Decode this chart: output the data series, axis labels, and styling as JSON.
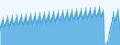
{
  "values": [
    4200,
    3100,
    4800,
    3800,
    5500,
    4200,
    6200,
    5100,
    3900,
    4600,
    3500,
    5200,
    4100,
    5800,
    4500,
    6500,
    5200,
    4000,
    4700,
    3600,
    5300,
    4200,
    5900,
    4700,
    6700,
    5400,
    4200,
    4900,
    3700,
    5400,
    4300,
    6000,
    4800,
    6800,
    5500,
    4300,
    5000,
    3800,
    5500,
    4400,
    6100,
    4900,
    6900,
    5600,
    4400,
    5100,
    3900,
    5600,
    4500,
    6200,
    5000,
    7000,
    5700,
    4500,
    5200,
    4000,
    5700,
    4600,
    6300,
    5100,
    7100,
    5800,
    4600,
    5300,
    4100,
    5800,
    4700,
    6400,
    5200,
    7200,
    5900,
    4700,
    5400,
    4200,
    5900,
    4800,
    6500,
    5300,
    7300,
    6000,
    4800,
    5500,
    4300,
    6000,
    4900,
    6600,
    5400,
    7400,
    6100,
    4900,
    5600,
    4400,
    6100,
    5000,
    6700,
    5500,
    7500,
    6200,
    5000,
    5700,
    4500,
    6200,
    5100,
    6800,
    5600,
    7600,
    6300,
    5100,
    5800,
    4600,
    6300,
    5200,
    6900,
    5700,
    7700,
    6400,
    5200,
    5900,
    4700,
    6400,
    5300,
    7000,
    5800,
    7800,
    6500,
    5300,
    6000,
    4800,
    6500,
    5400,
    7100,
    5900,
    7900,
    6600,
    5400,
    6100,
    4900,
    6600,
    5500,
    7200,
    6000,
    8000,
    6700,
    5500,
    6200,
    5000,
    6700,
    5600,
    7300,
    6100,
    8100,
    6800,
    5600,
    6300,
    5100,
    6800,
    5700,
    7400,
    6200,
    8200,
    6900,
    5700,
    6400,
    5200,
    6900,
    5800,
    7500,
    6300,
    8300,
    7000,
    5800,
    6500,
    5300,
    7000,
    5900,
    7600,
    6400,
    8400,
    7100,
    5900,
    6600,
    5400,
    7100,
    6000,
    7700,
    6500,
    8500,
    7200,
    6000,
    6700,
    5500,
    7200,
    6100,
    7800,
    6600,
    8600,
    7300,
    6100,
    6800,
    5600,
    7300,
    6200,
    7900,
    6700,
    200,
    150,
    100,
    50,
    300,
    600,
    800,
    500,
    1200,
    2000,
    3000,
    2500,
    4000,
    3200,
    5000,
    4100,
    6200,
    5200,
    7500,
    6300,
    5100,
    5900,
    4700,
    6500,
    5400,
    7200,
    6100,
    8100,
    6800,
    5600,
    4500,
    3500
  ],
  "line_color": "#4da6d9",
  "fill_color": "#6bb8e8",
  "background_color": "#f0f8ff",
  "ylim_min": 0,
  "ylim_max": 10000
}
